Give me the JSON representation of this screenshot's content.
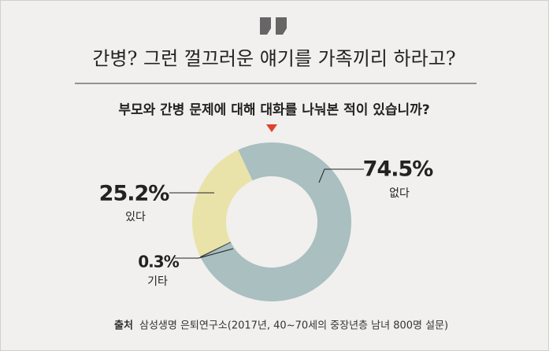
{
  "chart_data": {
    "type": "pie",
    "donut": true,
    "title": "간병? 그런 껄끄러운 얘기를 가족끼리 하라고?",
    "subtitle": "부모와 간병 문제에 대해 대화를 나눠본 적이 있습니까?",
    "categories": [
      "없다",
      "기타",
      "있다"
    ],
    "values": [
      74.5,
      0.3,
      25.2
    ],
    "value_labels": [
      "74.5%",
      "0.3%",
      "25.2%"
    ],
    "colors": [
      "#a9bfc0",
      "#4a4a4a",
      "#e9e3aa"
    ],
    "source_label": "출처",
    "source": "삼성생명 은퇴연구소(2017년, 40~70세의 중장년층 남녀 800명 설문)"
  }
}
